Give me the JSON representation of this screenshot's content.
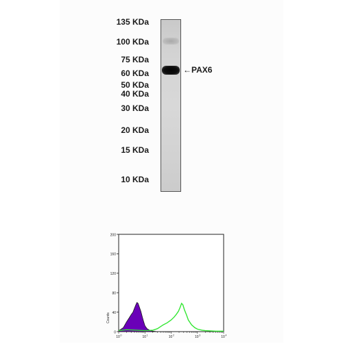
{
  "western_blot": {
    "markers": [
      {
        "label": "135 KDa",
        "kda": 135
      },
      {
        "label": "100 KDa",
        "kda": 100
      },
      {
        "label": "75 KDa",
        "kda": 75
      },
      {
        "label": "60 KDa",
        "kda": 60
      },
      {
        "label": "50 KDa",
        "kda": 50
      },
      {
        "label": "40 KDa",
        "kda": 40
      },
      {
        "label": "30 KDa",
        "kda": 30
      },
      {
        "label": "20 KDa",
        "kda": 20
      },
      {
        "label": "15 KDa",
        "kda": 15
      },
      {
        "label": "10 KDa",
        "kda": 10
      }
    ],
    "band_label": "←PAX6"
  },
  "flow_histogram": {
    "ylabel": "Counts",
    "y_ticks": [
      "0",
      "40",
      "80",
      "120",
      "160",
      "200"
    ],
    "x_ticks": [
      "10",
      "10",
      "10",
      "10",
      "10"
    ],
    "x_tick_exponents": [
      "0",
      "1",
      "2",
      "3",
      "4"
    ],
    "colors": {
      "control_fill": "#6a00b8",
      "sample_line": "#33e633",
      "outline": "#222222"
    }
  },
  "chart_data": {
    "type": "area",
    "xscale": "log",
    "xlim": [
      1,
      10000
    ],
    "ylim": [
      0,
      200
    ],
    "ylabel": "Counts",
    "xlabel": "",
    "series": [
      {
        "kind": "filled",
        "x": [
          1,
          1.5,
          2,
          2.5,
          3,
          3.5,
          4,
          4.5,
          5,
          5.5,
          6,
          7,
          8,
          9,
          10,
          12,
          15,
          20,
          30
        ],
        "y": [
          2,
          8,
          20,
          28,
          35,
          40,
          48,
          55,
          60,
          58,
          52,
          42,
          30,
          20,
          12,
          6,
          3,
          1,
          0
        ]
      },
      {
        "kind": "line",
        "x": [
          1,
          2,
          5,
          10,
          20,
          30,
          50,
          70,
          100,
          130,
          160,
          190,
          220,
          250,
          280,
          320,
          380,
          450,
          600,
          800,
          1000,
          1500,
          2000,
          5000,
          10000
        ],
        "y": [
          2,
          4,
          3,
          2,
          3,
          6,
          14,
          18,
          24,
          30,
          36,
          42,
          50,
          58,
          55,
          45,
          35,
          24,
          14,
          8,
          5,
          3,
          2,
          1,
          1
        ]
      }
    ]
  }
}
